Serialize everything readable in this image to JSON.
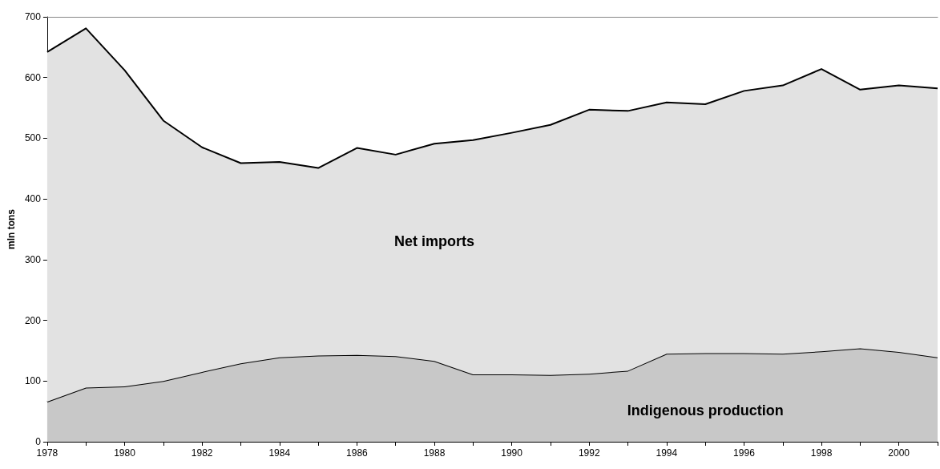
{
  "chart_data": {
    "type": "area",
    "stacked": true,
    "ylabel": "mln tons",
    "categories": [
      "1978",
      null,
      "1980",
      null,
      "1982",
      null,
      "1984",
      null,
      "1986",
      null,
      "1988",
      null,
      "1990",
      null,
      "1992",
      null,
      "1994",
      null,
      "1996",
      null,
      "1998",
      null,
      "2000",
      null
    ],
    "series": [
      {
        "name": "Indigenous production",
        "color": "#c8c8c8",
        "values": [
          66,
          89,
          91,
          100,
          115,
          129,
          139,
          142,
          143,
          141,
          133,
          111,
          111,
          110,
          112,
          117,
          145,
          146,
          146,
          145,
          149,
          154,
          148,
          139
        ]
      },
      {
        "name": "Net imports",
        "color": "#e2e2e2",
        "values": [
          576,
          592,
          521,
          429,
          370,
          330,
          322,
          309,
          341,
          332,
          358,
          386,
          398,
          412,
          435,
          428,
          414,
          410,
          432,
          442,
          465,
          426,
          439,
          443
        ]
      }
    ],
    "ylim": [
      0,
      700
    ],
    "yticks": [
      0,
      100,
      200,
      300,
      400,
      500,
      600,
      700
    ],
    "grid": false,
    "legend": false
  }
}
